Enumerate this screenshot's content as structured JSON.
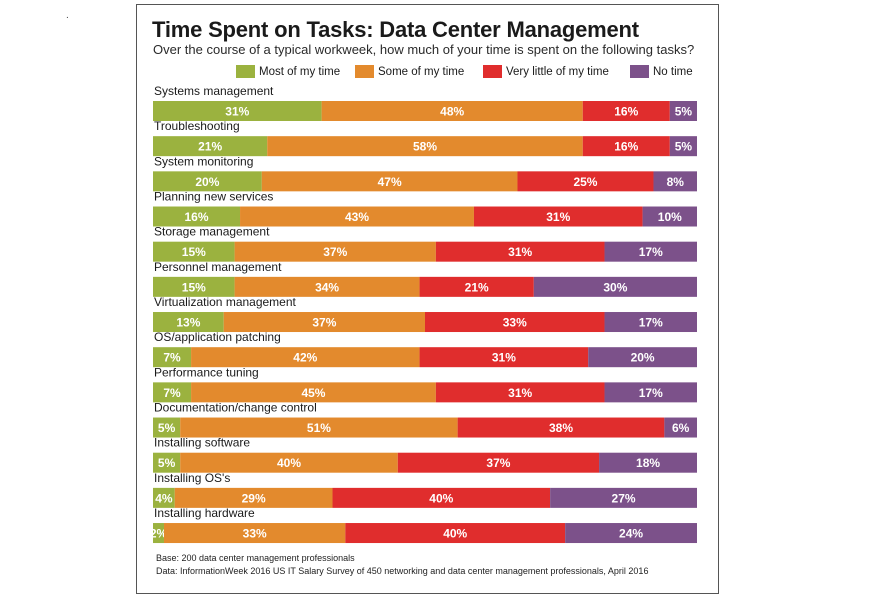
{
  "colors": {
    "most": "#9bb23f",
    "some": "#e38a2d",
    "little": "#e02d2d",
    "none": "#7c518a"
  },
  "chart_data": {
    "type": "stacked-bar-horizontal",
    "title": "Time Spent on Tasks: Data Center Management",
    "subtitle": "Over the course of a typical workweek, how much of your time is spent on the following tasks?",
    "legend": [
      "Most of my time",
      "Some of my time",
      "Very little of my time",
      "No time"
    ],
    "series_keys": [
      "most",
      "some",
      "little",
      "none"
    ],
    "categories": [
      "Systems management",
      "Troubleshooting",
      "System monitoring",
      "Planning new services",
      "Storage management",
      "Personnel management",
      "Virtualization management",
      "OS/application patching",
      "Performance tuning",
      "Documentation/change control",
      "Installing software",
      "Installing OS's",
      "Installing hardware"
    ],
    "series": [
      {
        "name": "Most of my time",
        "values": [
          31,
          21,
          20,
          16,
          15,
          15,
          13,
          7,
          7,
          5,
          5,
          4,
          2
        ]
      },
      {
        "name": "Some of my time",
        "values": [
          48,
          58,
          47,
          43,
          37,
          34,
          37,
          42,
          45,
          51,
          40,
          29,
          33
        ]
      },
      {
        "name": "Very little of my time",
        "values": [
          16,
          16,
          25,
          31,
          31,
          21,
          33,
          31,
          31,
          38,
          37,
          40,
          40
        ]
      },
      {
        "name": "No time",
        "values": [
          5,
          5,
          8,
          10,
          17,
          30,
          17,
          20,
          17,
          6,
          18,
          27,
          24
        ]
      }
    ],
    "unit": "%"
  },
  "footnotes": {
    "base": "Base: 200 data center management professionals",
    "source": "Data: InformationWeek 2016 US IT Salary Survey of 450 networking and data center management professionals, April 2016"
  }
}
